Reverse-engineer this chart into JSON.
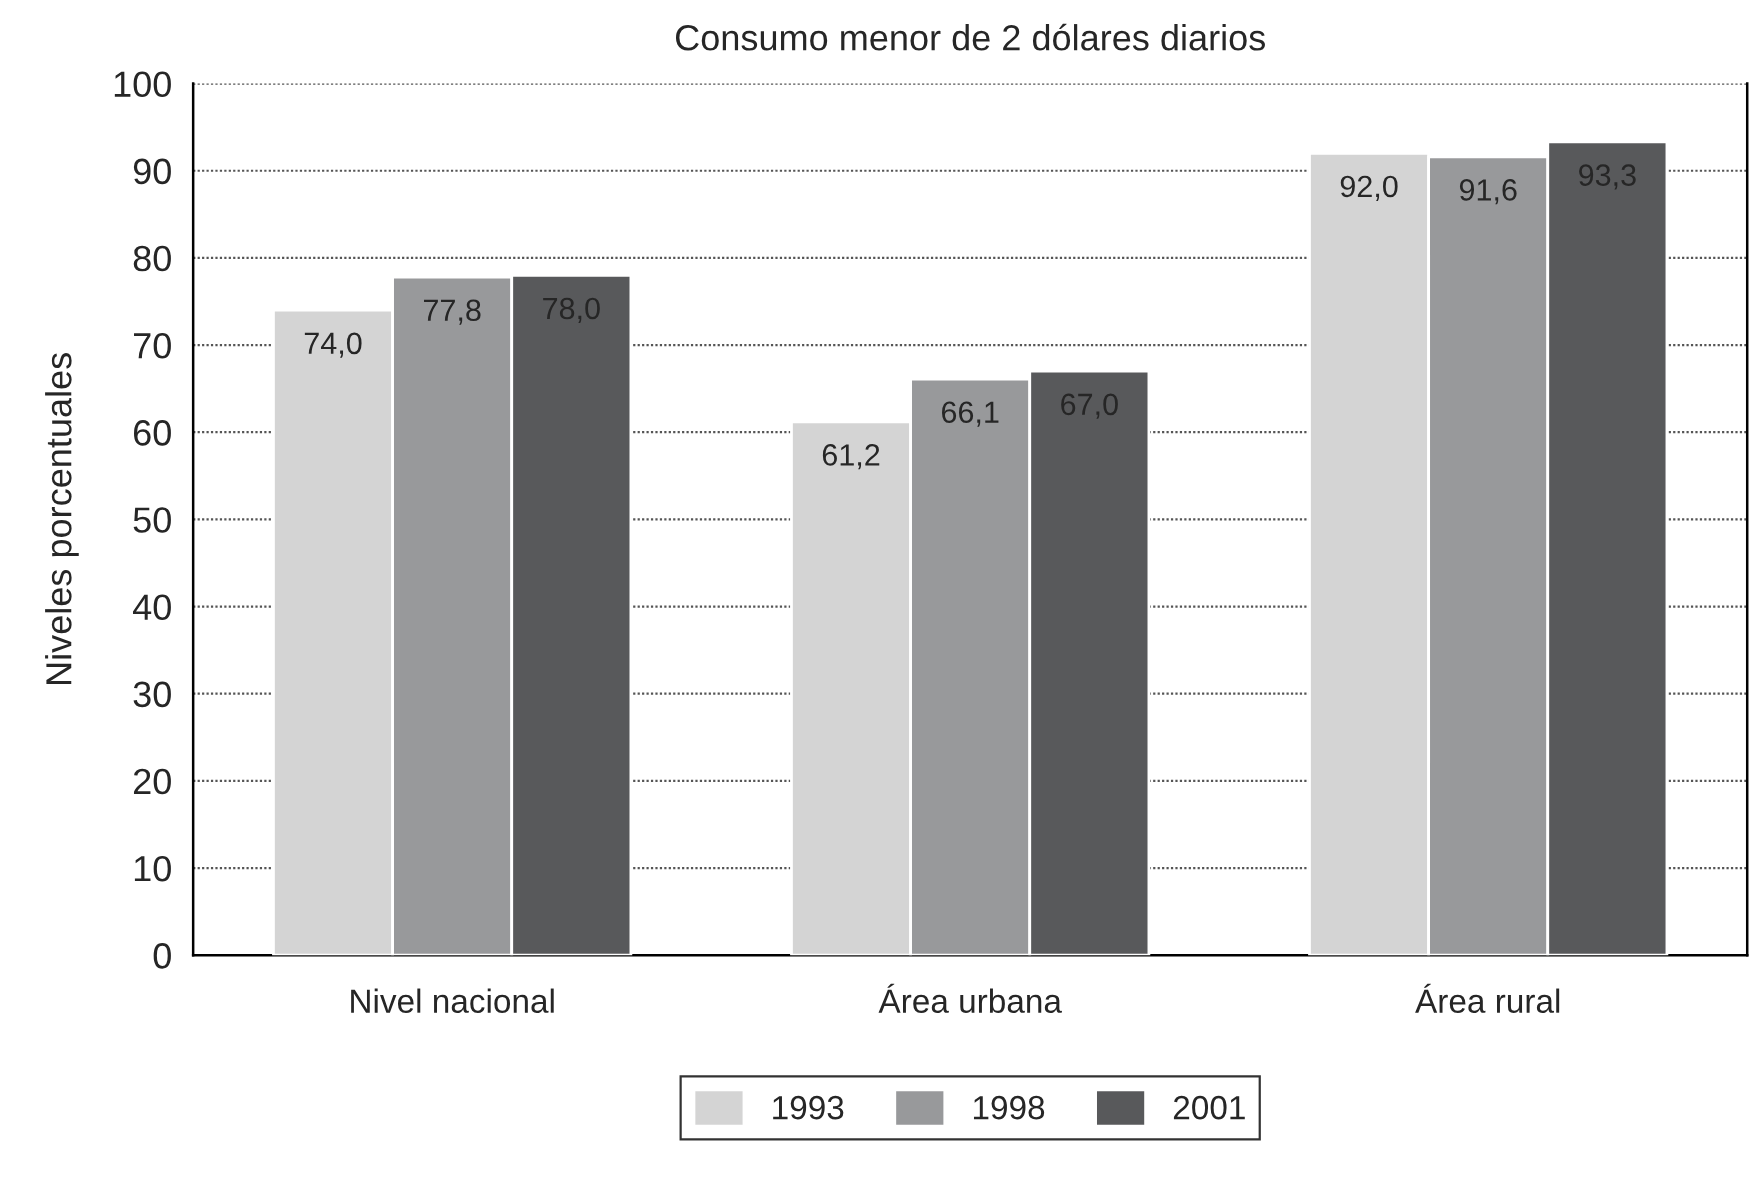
{
  "chart_data": {
    "type": "bar",
    "title": "Consumo menor de 2 dólares diarios",
    "ylabel": "Niveles porcentuales",
    "categories": [
      "Nivel nacional",
      "Área urbana",
      "Área rural"
    ],
    "series": [
      {
        "name": "1993",
        "color": "#d4d4d4",
        "values": [
          74.0,
          61.2,
          92.0
        ],
        "value_labels": [
          "74,0",
          "61,2",
          "92,0"
        ]
      },
      {
        "name": "1998",
        "color": "#98999b",
        "values": [
          77.8,
          66.1,
          91.6
        ],
        "value_labels": [
          "77,8",
          "66,1",
          "91,6"
        ]
      },
      {
        "name": "2001",
        "color": "#58595b",
        "values": [
          78.0,
          67.0,
          93.3
        ],
        "value_labels": [
          "78,0",
          "67,0",
          "93,3"
        ]
      }
    ],
    "ylim": [
      0,
      100
    ],
    "yticks": [
      0,
      10,
      20,
      30,
      40,
      50,
      60,
      70,
      80,
      90,
      100
    ],
    "grid": "y",
    "legend": "bottom"
  }
}
